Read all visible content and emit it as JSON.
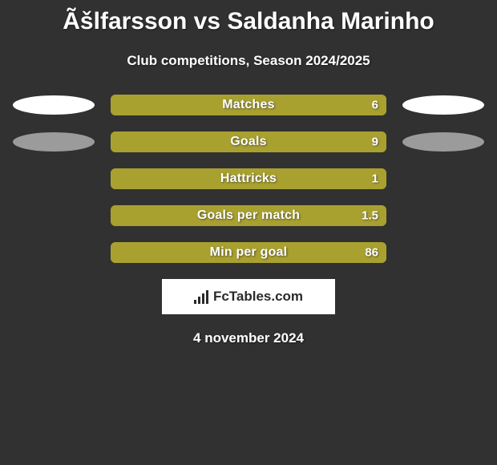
{
  "title": "Ãšlfarsson vs Saldanha Marinho",
  "subtitle": "Club competitions, Season 2024/2025",
  "date_text": "4 november 2024",
  "logo_text": "FcTables.com",
  "logo_bg": "#ffffff",
  "logo_fg": "#2a2a2a",
  "background_color": "#313131",
  "palette": {
    "olive": "#a9a12f",
    "gray": "#9b9b9b",
    "white": "#ffffff"
  },
  "stats": [
    {
      "label": "Matches",
      "value_text": "6",
      "bar_fill_color": "#a9a12f",
      "bar_fill_from_pct": 0,
      "bar_fill_to_pct": 100,
      "border_color": "#a9a12f",
      "left_ellipse_color": "#ffffff",
      "right_ellipse_color": "#ffffff"
    },
    {
      "label": "Goals",
      "value_text": "9",
      "bar_fill_color": "#a9a12f",
      "bar_fill_from_pct": 0,
      "bar_fill_to_pct": 100,
      "border_color": "#a9a12f",
      "left_ellipse_color": "#9b9b9b",
      "right_ellipse_color": "#9b9b9b"
    },
    {
      "label": "Hattricks",
      "value_text": "1",
      "bar_fill_color": "#a9a12f",
      "bar_fill_from_pct": 0,
      "bar_fill_to_pct": 100,
      "border_color": "#a9a12f",
      "left_ellipse_color": null,
      "right_ellipse_color": null
    },
    {
      "label": "Goals per match",
      "value_text": "1.5",
      "bar_fill_color": "#a9a12f",
      "bar_fill_from_pct": 0,
      "bar_fill_to_pct": 100,
      "border_color": "#a9a12f",
      "left_ellipse_color": null,
      "right_ellipse_color": null
    },
    {
      "label": "Min per goal",
      "value_text": "86",
      "bar_fill_color": "#a9a12f",
      "bar_fill_from_pct": 0,
      "bar_fill_to_pct": 100,
      "border_color": "#a9a12f",
      "left_ellipse_color": null,
      "right_ellipse_color": null
    }
  ]
}
